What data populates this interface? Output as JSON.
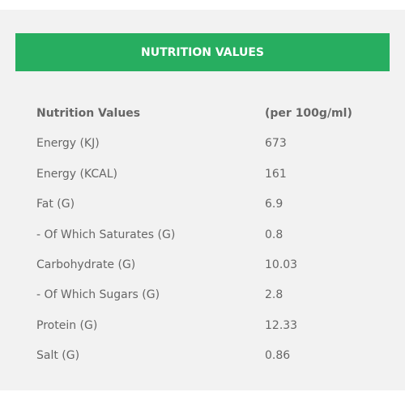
{
  "header": {
    "title": "NUTRITION VALUES"
  },
  "table": {
    "columns": [
      "Nutrition Values",
      "(per 100g/ml)"
    ],
    "rows": [
      [
        "Energy (KJ)",
        "673"
      ],
      [
        "Energy (KCAL)",
        "161"
      ],
      [
        "Fat (G)",
        "6.9"
      ],
      [
        "- Of Which Saturates (G)",
        "0.8"
      ],
      [
        "Carbohydrate (G)",
        "10.03"
      ],
      [
        "- Of Which Sugars (G)",
        "2.8"
      ],
      [
        "Protein (G)",
        "12.33"
      ],
      [
        "Salt (G)",
        "0.86"
      ]
    ]
  }
}
